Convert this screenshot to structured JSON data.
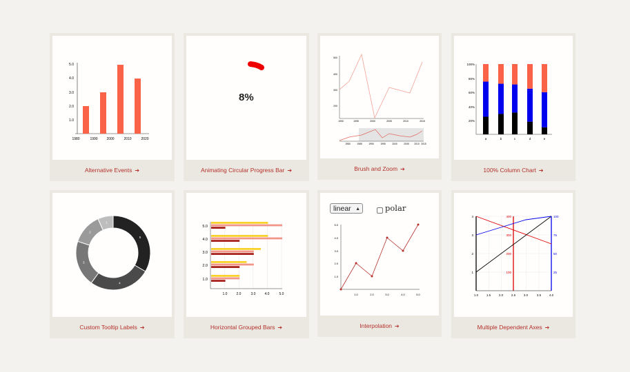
{
  "cards": [
    {
      "label": "Alternative Events",
      "arrow": "➔"
    },
    {
      "label": "Animating Circular Progress Bar",
      "arrow": "➔"
    },
    {
      "label": "Brush and Zoom",
      "arrow": "➔"
    },
    {
      "label": "100% Column Chart",
      "arrow": "➔"
    },
    {
      "label": "Custom Tooltip Labels",
      "arrow": "➔"
    },
    {
      "label": "Horizontal Grouped Bars",
      "arrow": "➔"
    },
    {
      "label": "Interpolation",
      "arrow": "➔"
    },
    {
      "label": "Multiple Dependent Axes",
      "arrow": "➔"
    }
  ],
  "progress": {
    "text": "8%",
    "value": 0.08
  },
  "interpolation": {
    "selected": "linear",
    "checkbox_label": "polar"
  },
  "colors": {
    "accent": "#b4302a",
    "bar": "#fb6349",
    "blue": "#0000ee",
    "red": "#e00000"
  },
  "chart_data": [
    {
      "type": "bar",
      "x": [
        1990,
        2000,
        2005,
        2010
      ],
      "values": [
        2,
        3,
        5,
        4
      ],
      "xticks": [
        "1980",
        "1990",
        "2000",
        "2010",
        "2020"
      ],
      "yticks": [
        "1.0",
        "2.0",
        "3.0",
        "4.0",
        "5.0"
      ],
      "xlim": [
        1980,
        2020
      ],
      "ylim": [
        0,
        5
      ]
    },
    {
      "type": "line",
      "x": [
        1990,
        1995,
        2000,
        2005,
        2010,
        2015,
        2020
      ],
      "values": [
        300,
        320,
        460,
        160,
        300,
        280,
        430
      ],
      "yticks": [
        "200",
        "300",
        "400",
        "500"
      ],
      "xticks": [
        "1990",
        "1995",
        "2000",
        "2005",
        "2010",
        "2015"
      ],
      "ylim": [
        160,
        480
      ],
      "overview_xticks": [
        "1980",
        "1985",
        "1990",
        "1995",
        "2000",
        "2005",
        "2010",
        "2015"
      ]
    },
    {
      "type": "bar",
      "stacked": true,
      "categories": [
        "a",
        "b",
        "c",
        "d",
        "e"
      ],
      "series": [
        {
          "color": "#000000",
          "values": [
            25,
            29,
            31,
            18,
            10
          ]
        },
        {
          "color": "#0000ee",
          "values": [
            50,
            43,
            40,
            47,
            50
          ]
        },
        {
          "color": "#fb6349",
          "values": [
            25,
            28,
            29,
            35,
            40
          ]
        }
      ],
      "yticks": [
        "20%",
        "40%",
        "60%",
        "80%",
        "100%"
      ]
    },
    {
      "type": "pie",
      "labels": [
        "5",
        "4",
        "3",
        "2",
        "1"
      ],
      "values": [
        5,
        4,
        3,
        2,
        1
      ],
      "colors": [
        "#222222",
        "#4a4a4a",
        "#777777",
        "#9a9a9a",
        "#bdbdbd"
      ]
    },
    {
      "type": "bar",
      "orientation": "horizontal",
      "categories": [
        "1.0",
        "2.0",
        "3.0",
        "4.0",
        "5.0"
      ],
      "series": [
        {
          "color": "#f8d22a",
          "values": [
            2.0,
            2.5,
            3.5,
            4.0,
            4.0
          ]
        },
        {
          "color": "#f29488",
          "values": [
            2.0,
            3.0,
            3.0,
            5.0,
            5.0
          ]
        },
        {
          "color": "#a8201a",
          "values": [
            1.0,
            2.0,
            3.0,
            2.0,
            1.0
          ]
        }
      ],
      "xticks": [
        "1.0",
        "2.0",
        "3.0",
        "4.0",
        "5.0"
      ]
    },
    {
      "type": "line",
      "x": [
        0,
        1,
        2,
        3,
        4,
        5
      ],
      "values": [
        0,
        2,
        1,
        4,
        3,
        5
      ],
      "xticks": [
        "1.0",
        "2.0",
        "3.0",
        "4.0",
        "5.0"
      ],
      "yticks": [
        "1.0",
        "2.0",
        "3.0",
        "4.0",
        "5.0"
      ]
    },
    {
      "type": "line",
      "xticks": [
        "1.0",
        "1.5",
        "2.0",
        "2.5",
        "3.0",
        "3.5",
        "4.0"
      ],
      "left_ticks": [
        "1",
        "2",
        "3",
        "4"
      ],
      "red_ticks": [
        "100",
        "200",
        "300",
        "400"
      ],
      "blue_ticks": [
        "25",
        "50",
        "75",
        "100"
      ],
      "series": [
        {
          "color": "#000000",
          "x": [
            1,
            4
          ],
          "values": [
            1,
            4
          ]
        },
        {
          "color": "#e00000",
          "x": [
            1,
            4
          ],
          "values": [
            4,
            2.5
          ]
        },
        {
          "color": "#0000ee",
          "x": [
            1,
            2,
            3,
            4
          ],
          "values": [
            3,
            3.5,
            3.8,
            4
          ]
        }
      ]
    }
  ]
}
